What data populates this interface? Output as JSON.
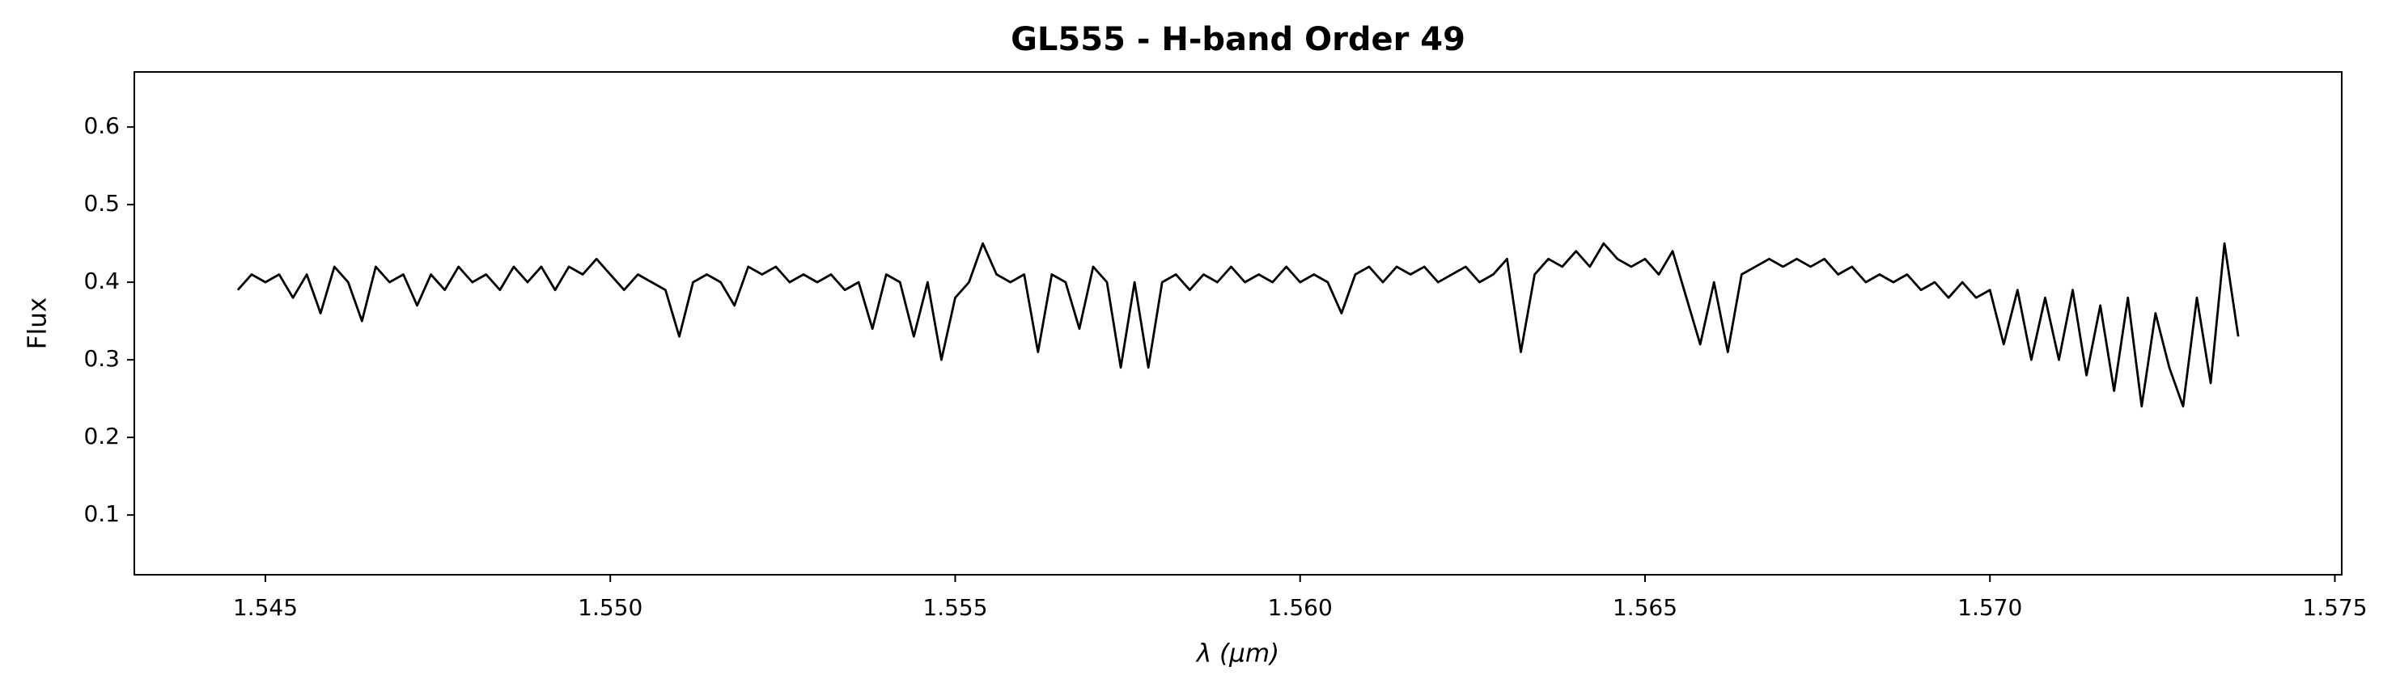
{
  "chart_data": {
    "type": "line",
    "title": "GL555 - H-band Order 49",
    "x_label": "λ (μm)",
    "y_label": "Flux",
    "color": "#000000",
    "x": [
      1.5446,
      1.5448,
      1.545,
      1.5452,
      1.5454,
      1.5456,
      1.5458,
      1.546,
      1.5462,
      1.5464,
      1.5466,
      1.5468,
      1.547,
      1.5472,
      1.5474,
      1.5476,
      1.5478,
      1.548,
      1.5482,
      1.5484,
      1.5486,
      1.5488,
      1.549,
      1.5492,
      1.5494,
      1.5496,
      1.5498,
      1.55,
      1.5502,
      1.5504,
      1.5506,
      1.5508,
      1.551,
      1.5512,
      1.5514,
      1.5516,
      1.5518,
      1.552,
      1.5522,
      1.5524,
      1.5526,
      1.5528,
      1.553,
      1.5532,
      1.5534,
      1.5536,
      1.5538,
      1.554,
      1.5542,
      1.5544,
      1.5546,
      1.5548,
      1.555,
      1.5552,
      1.5554,
      1.5556,
      1.5558,
      1.556,
      1.5562,
      1.5564,
      1.5566,
      1.5568,
      1.557,
      1.5572,
      1.5574,
      1.5576,
      1.5578,
      1.558,
      1.5582,
      1.5584,
      1.5586,
      1.5588,
      1.559,
      1.5592,
      1.5594,
      1.5596,
      1.5598,
      1.56,
      1.5602,
      1.5604,
      1.5606,
      1.5608,
      1.561,
      1.5612,
      1.5614,
      1.5616,
      1.5618,
      1.562,
      1.5622,
      1.5624,
      1.5626,
      1.5628,
      1.563,
      1.5632,
      1.5634,
      1.5636,
      1.5638,
      1.564,
      1.5642,
      1.5644,
      1.5646,
      1.5648,
      1.565,
      1.5652,
      1.5654,
      1.5656,
      1.5658,
      1.566,
      1.5662,
      1.5664,
      1.5666,
      1.5668,
      1.567,
      1.5672,
      1.5674,
      1.5676,
      1.5678,
      1.568,
      1.5682,
      1.5684,
      1.5686,
      1.5688,
      1.569,
      1.5692,
      1.5694,
      1.5696,
      1.5698,
      1.57,
      1.5702,
      1.5704,
      1.5706,
      1.5708,
      1.571,
      1.5712,
      1.5714,
      1.5716,
      1.5718,
      1.572,
      1.5722,
      1.5724,
      1.5726,
      1.5728,
      1.573,
      1.5732,
      1.5734,
      1.5736
    ],
    "values": [
      0.39,
      0.41,
      0.4,
      0.41,
      0.38,
      0.41,
      0.36,
      0.42,
      0.4,
      0.35,
      0.42,
      0.4,
      0.41,
      0.37,
      0.41,
      0.39,
      0.42,
      0.4,
      0.41,
      0.39,
      0.42,
      0.4,
      0.42,
      0.39,
      0.42,
      0.41,
      0.43,
      0.41,
      0.39,
      0.41,
      0.4,
      0.39,
      0.33,
      0.4,
      0.41,
      0.4,
      0.37,
      0.42,
      0.41,
      0.42,
      0.4,
      0.41,
      0.4,
      0.41,
      0.39,
      0.4,
      0.34,
      0.41,
      0.4,
      0.33,
      0.4,
      0.3,
      0.38,
      0.4,
      0.45,
      0.41,
      0.4,
      0.41,
      0.31,
      0.41,
      0.4,
      0.34,
      0.42,
      0.4,
      0.29,
      0.4,
      0.29,
      0.4,
      0.41,
      0.39,
      0.41,
      0.4,
      0.42,
      0.4,
      0.41,
      0.4,
      0.42,
      0.4,
      0.41,
      0.4,
      0.36,
      0.41,
      0.42,
      0.4,
      0.42,
      0.41,
      0.42,
      0.4,
      0.41,
      0.42,
      0.4,
      0.41,
      0.43,
      0.31,
      0.41,
      0.43,
      0.42,
      0.44,
      0.42,
      0.45,
      0.43,
      0.42,
      0.43,
      0.41,
      0.44,
      0.38,
      0.32,
      0.4,
      0.31,
      0.41,
      0.42,
      0.43,
      0.42,
      0.43,
      0.42,
      0.43,
      0.41,
      0.42,
      0.4,
      0.41,
      0.4,
      0.41,
      0.39,
      0.4,
      0.38,
      0.4,
      0.38,
      0.39,
      0.32,
      0.39,
      0.3,
      0.38,
      0.3,
      0.39,
      0.28,
      0.37,
      0.26,
      0.38,
      0.24,
      0.36,
      0.29,
      0.24,
      0.38,
      0.27,
      0.45,
      0.33
    ],
    "xlim": [
      1.5431,
      1.5751
    ],
    "ylim": [
      0.023,
      0.671
    ],
    "xticks": [
      1.545,
      {
        "value": 1.55,
        "label": "1.550"
      },
      1.555,
      {
        "value": 1.56,
        "label": "1.560"
      },
      1.565,
      {
        "value": 1.57,
        "label": "1.570"
      },
      1.575
    ],
    "yticks": [
      0.1,
      0.2,
      0.3,
      0.4,
      0.5,
      0.6
    ],
    "grid": false
  }
}
